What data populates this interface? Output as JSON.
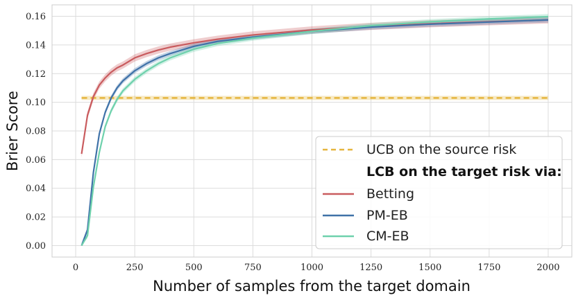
{
  "chart_data": {
    "type": "line",
    "xlabel": "Number of samples from the target domain",
    "ylabel": "Brier Score",
    "xlim": [
      -100,
      2100
    ],
    "ylim": [
      -0.008,
      0.168
    ],
    "xticks": [
      0,
      250,
      500,
      750,
      1000,
      1250,
      1500,
      1750,
      2000
    ],
    "xtick_labels": [
      "0",
      "250",
      "500",
      "750",
      "1000",
      "1250",
      "1500",
      "1750",
      "2000"
    ],
    "yticks": [
      0.0,
      0.02,
      0.04,
      0.06,
      0.08,
      0.1,
      0.12,
      0.14,
      0.16
    ],
    "ytick_labels": [
      "0.00",
      "0.02",
      "0.04",
      "0.06",
      "0.08",
      "0.10",
      "0.12",
      "0.14",
      "0.16"
    ],
    "grid": true,
    "legend_position": "bottom-right",
    "legend_header": "LCB on the target risk via:",
    "reference_line": {
      "name": "UCB on the source risk",
      "style": "dashed",
      "color": "#e5b53d",
      "x": [
        25,
        2000
      ],
      "y": 0.103
    },
    "series": [
      {
        "name": "Betting",
        "color": "#c95b5e",
        "band": 0.0025,
        "x": [
          25,
          50,
          75,
          100,
          125,
          150,
          175,
          200,
          250,
          300,
          350,
          400,
          500,
          600,
          750,
          1000,
          1250,
          1500,
          1750,
          2000
        ],
        "y": [
          0.064,
          0.091,
          0.104,
          0.112,
          0.117,
          0.121,
          0.124,
          0.126,
          0.131,
          0.134,
          0.1365,
          0.1385,
          0.1415,
          0.144,
          0.147,
          0.1505,
          0.153,
          0.1548,
          0.1562,
          0.1575
        ]
      },
      {
        "name": "PM-EB",
        "color": "#3f72a8",
        "band": 0.0018,
        "x": [
          25,
          50,
          75,
          100,
          125,
          150,
          175,
          200,
          250,
          300,
          350,
          400,
          500,
          600,
          750,
          1000,
          1250,
          1500,
          1750,
          2000
        ],
        "y": [
          0.0,
          0.011,
          0.051,
          0.078,
          0.093,
          0.103,
          0.11,
          0.115,
          0.122,
          0.127,
          0.131,
          0.134,
          0.139,
          0.1425,
          0.1455,
          0.1495,
          0.1525,
          0.1545,
          0.156,
          0.1575
        ]
      },
      {
        "name": "CM-EB",
        "color": "#6ed1ac",
        "band": 0.0018,
        "x": [
          25,
          50,
          75,
          100,
          125,
          150,
          175,
          200,
          250,
          300,
          350,
          400,
          500,
          600,
          750,
          1000,
          1250,
          1500,
          1750,
          2000
        ],
        "y": [
          0.0,
          0.007,
          0.041,
          0.065,
          0.083,
          0.094,
          0.102,
          0.108,
          0.116,
          0.122,
          0.127,
          0.131,
          0.137,
          0.141,
          0.1448,
          0.1495,
          0.1535,
          0.1562,
          0.1582,
          0.1598
        ]
      }
    ]
  }
}
